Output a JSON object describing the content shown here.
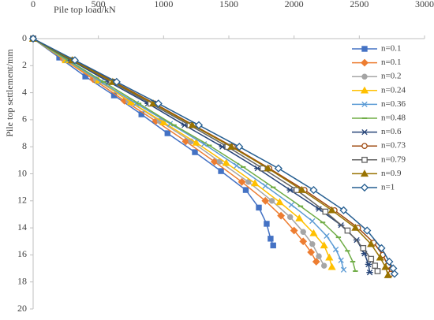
{
  "chart_data": {
    "type": "line",
    "x_label": "Pile top load/kN",
    "y_label": "Pile top settlement/mm",
    "xlim": [
      0,
      3000
    ],
    "xticks": [
      0,
      500,
      1000,
      1500,
      2000,
      2500,
      3000
    ],
    "x_axis_position": "top",
    "ylim": [
      0,
      20
    ],
    "yticks": [
      0,
      2,
      4,
      6,
      8,
      10,
      12,
      14,
      16,
      18,
      20
    ],
    "y_inverted": true,
    "grid": false,
    "legend": "right",
    "series": [
      {
        "name": "n=0.1",
        "color": "#4472c4",
        "marker": "square",
        "x": [
          0,
          200,
          400,
          620,
          830,
          1030,
          1240,
          1440,
          1630,
          1730,
          1790,
          1820,
          1840
        ],
        "values": [
          0,
          1.4,
          2.8,
          4.2,
          5.6,
          7.0,
          8.4,
          9.8,
          11.2,
          12.5,
          13.7,
          14.8,
          15.3
        ]
      },
      {
        "name": "n=0.1",
        "color": "#ed7d31",
        "marker": "diamond",
        "x": [
          0,
          230,
          460,
          700,
          940,
          1170,
          1390,
          1600,
          1780,
          1900,
          2000,
          2070,
          2130,
          2170
        ],
        "values": [
          0,
          1.5,
          3.0,
          4.6,
          6.1,
          7.6,
          9.1,
          10.6,
          12.0,
          13.1,
          14.2,
          15.0,
          15.8,
          16.5
        ]
      },
      {
        "name": "n=0.2",
        "color": "#a5a5a5",
        "marker": "circle",
        "x": [
          0,
          240,
          480,
          730,
          970,
          1210,
          1430,
          1650,
          1830,
          1970,
          2070,
          2140,
          2190,
          2230
        ],
        "values": [
          0,
          1.5,
          3.0,
          4.6,
          6.1,
          7.6,
          9.1,
          10.6,
          12.0,
          13.2,
          14.3,
          15.2,
          16.1,
          16.8
        ]
      },
      {
        "name": "n=0.24",
        "color": "#ffc000",
        "marker": "triangle",
        "x": [
          0,
          250,
          500,
          750,
          1000,
          1250,
          1480,
          1700,
          1890,
          2040,
          2150,
          2230,
          2270,
          2290
        ],
        "values": [
          0,
          1.6,
          3.1,
          4.7,
          6.2,
          7.7,
          9.2,
          10.7,
          12.1,
          13.3,
          14.4,
          15.3,
          16.2,
          16.9
        ]
      },
      {
        "name": "n=0.36",
        "color": "#5b9bd5",
        "marker": "x",
        "x": [
          0,
          260,
          520,
          790,
          1050,
          1310,
          1560,
          1780,
          1980,
          2140,
          2250,
          2320,
          2360,
          2380
        ],
        "values": [
          0,
          1.6,
          3.2,
          4.8,
          6.3,
          7.8,
          9.4,
          10.9,
          12.3,
          13.5,
          14.6,
          15.6,
          16.4,
          17.1
        ]
      },
      {
        "name": "n=0.48",
        "color": "#70ad47",
        "marker": "dash",
        "x": [
          0,
          270,
          540,
          810,
          1080,
          1350,
          1610,
          1840,
          2050,
          2220,
          2340,
          2410,
          2450,
          2470
        ],
        "values": [
          0,
          1.6,
          3.2,
          4.8,
          6.4,
          7.9,
          9.5,
          11.0,
          12.4,
          13.6,
          14.7,
          15.7,
          16.5,
          17.2
        ]
      },
      {
        "name": "n=0.6",
        "color": "#264478",
        "marker": "star",
        "x": [
          0,
          290,
          580,
          880,
          1160,
          1450,
          1720,
          1970,
          2190,
          2360,
          2480,
          2540,
          2570,
          2580
        ],
        "values": [
          0,
          1.6,
          3.2,
          4.8,
          6.4,
          8.0,
          9.6,
          11.2,
          12.6,
          13.8,
          14.9,
          15.9,
          16.7,
          17.3
        ]
      },
      {
        "name": "n=0.73",
        "color": "#9e480e",
        "marker": "open-circle",
        "x": [
          0,
          310,
          620,
          930,
          1230,
          1530,
          1810,
          2080,
          2310,
          2490,
          2610,
          2680,
          2720,
          2740
        ],
        "values": [
          0,
          1.6,
          3.2,
          4.8,
          6.4,
          8.0,
          9.6,
          11.2,
          12.7,
          14.0,
          15.1,
          16.0,
          16.8,
          17.4
        ]
      },
      {
        "name": "n=0.79",
        "color": "#636363",
        "marker": "open-square",
        "x": [
          0,
          300,
          600,
          900,
          1200,
          1490,
          1760,
          2020,
          2240,
          2410,
          2530,
          2590,
          2620,
          2640
        ],
        "values": [
          0,
          1.6,
          3.2,
          4.8,
          6.4,
          8.0,
          9.6,
          11.2,
          12.8,
          14.2,
          15.5,
          16.3,
          16.8,
          17.2
        ]
      },
      {
        "name": "n=0.9",
        "color": "#997300",
        "marker": "triangle",
        "x": [
          0,
          300,
          610,
          920,
          1220,
          1520,
          1800,
          2060,
          2290,
          2470,
          2590,
          2660,
          2700,
          2720
        ],
        "values": [
          0,
          1.6,
          3.2,
          4.8,
          6.4,
          8.0,
          9.6,
          11.2,
          12.7,
          14.0,
          15.2,
          16.2,
          16.9,
          17.5
        ]
      },
      {
        "name": "n=1",
        "color": "#255e91",
        "marker": "open-diamond",
        "x": [
          0,
          320,
          640,
          960,
          1270,
          1580,
          1880,
          2150,
          2380,
          2560,
          2670,
          2730,
          2760,
          2770
        ],
        "values": [
          0,
          1.6,
          3.2,
          4.8,
          6.4,
          8.0,
          9.6,
          11.2,
          12.7,
          14.2,
          15.5,
          16.5,
          17.0,
          17.4
        ]
      }
    ]
  }
}
